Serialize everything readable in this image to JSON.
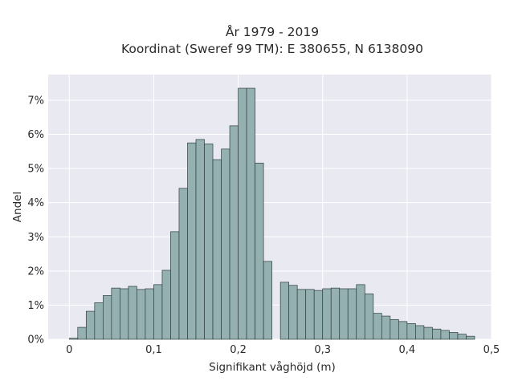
{
  "chart_data": {
    "type": "bar",
    "title": "År 1979 - 2019",
    "subtitle": "Koordinat (Sweref 99 TM): E 380655, N 6138090",
    "xlabel": "Signifikant våghöjd (m)",
    "ylabel": "Andel",
    "xlim": [
      -0.025,
      0.5
    ],
    "ylim": [
      0,
      0.0775
    ],
    "x_ticks": [
      0,
      0.1,
      0.2,
      0.3,
      0.4,
      0.5
    ],
    "x_tick_labels": [
      "0",
      "0,1",
      "0,2",
      "0,3",
      "0,4",
      "0,5"
    ],
    "y_ticks": [
      0,
      0.01,
      0.02,
      0.03,
      0.04,
      0.05,
      0.06,
      0.07
    ],
    "y_tick_labels": [
      "0%",
      "1%",
      "2%",
      "3%",
      "4%",
      "5%",
      "6%",
      "7%"
    ],
    "grid": true,
    "bar_color": "#95b0b0",
    "bar_edge_color": "#2f3f3f",
    "background_color": "#e9e9f2",
    "bin_width": 0.01,
    "bin_left_edges": [
      0.0,
      0.01,
      0.02,
      0.03,
      0.04,
      0.05,
      0.06,
      0.07,
      0.08,
      0.09,
      0.1,
      0.11,
      0.12,
      0.13,
      0.14,
      0.15,
      0.16,
      0.17,
      0.18,
      0.19,
      0.2,
      0.21,
      0.22,
      0.23,
      0.24,
      0.25,
      0.26,
      0.27,
      0.28,
      0.29,
      0.3,
      0.31,
      0.32,
      0.33,
      0.34,
      0.35,
      0.36,
      0.37,
      0.38,
      0.39,
      0.4,
      0.41,
      0.42,
      0.43,
      0.44,
      0.45,
      0.46,
      0.47
    ],
    "values": [
      0.0003,
      0.0035,
      0.0082,
      0.0107,
      0.0128,
      0.015,
      0.0148,
      0.0155,
      0.0146,
      0.0148,
      0.016,
      0.0202,
      0.0315,
      0.0442,
      0.0575,
      0.0585,
      0.0572,
      0.0526,
      0.0557,
      0.0625,
      0.0735,
      0.0735,
      0.0516,
      0.0228,
      0.0,
      0.0167,
      0.0158,
      0.0146,
      0.0146,
      0.0143,
      0.0148,
      0.015,
      0.0148,
      0.0148,
      0.016,
      0.0133,
      0.0076,
      0.0068,
      0.0058,
      0.0052,
      0.0046,
      0.004,
      0.0035,
      0.003,
      0.0026,
      0.002,
      0.0015,
      0.0009
    ]
  }
}
